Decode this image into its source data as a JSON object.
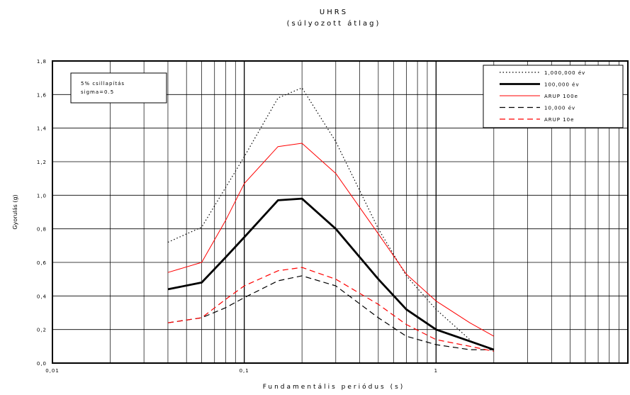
{
  "chart_data": {
    "type": "line",
    "title": "UHRS",
    "subtitle": "(súlyozott átlag)",
    "xlabel": "Fundamentális periódus (s)",
    "ylabel": "Gyorulás (g)",
    "xscale": "log",
    "xlim": [
      0.01,
      10
    ],
    "ylim": [
      0,
      1.8
    ],
    "x_tick_labels": [
      "0,01",
      "0,1",
      "1"
    ],
    "y_tick_labels": [
      "0,0",
      "0,2",
      "0,4",
      "0,6",
      "0,8",
      "1,0",
      "1,2",
      "1,4",
      "1,6",
      "1,8"
    ],
    "annotation": [
      "5% csillapítás",
      "sigma=0.5"
    ],
    "grid": true,
    "legend_position": "top-right",
    "series": [
      {
        "name": "1,000,000 év",
        "color": "#000000",
        "style": "dotted",
        "x": [
          0.04,
          0.06,
          0.1,
          0.15,
          0.2,
          0.3,
          0.5,
          0.7,
          1.0,
          1.5
        ],
        "y": [
          0.72,
          0.81,
          1.23,
          1.58,
          1.64,
          1.32,
          0.8,
          0.52,
          0.32,
          0.14
        ]
      },
      {
        "name": "100,000 év",
        "color": "#000000",
        "style": "thick",
        "x": [
          0.04,
          0.06,
          0.08,
          0.1,
          0.15,
          0.2,
          0.3,
          0.5,
          0.7,
          1.0,
          1.5,
          2.0
        ],
        "y": [
          0.44,
          0.48,
          0.63,
          0.75,
          0.97,
          0.98,
          0.8,
          0.5,
          0.32,
          0.2,
          0.13,
          0.08
        ]
      },
      {
        "name": "ARUP 100e",
        "color": "#ff0000",
        "style": "solid",
        "x": [
          0.04,
          0.06,
          0.08,
          0.1,
          0.15,
          0.2,
          0.3,
          0.5,
          0.7,
          1.0,
          1.5,
          2.0
        ],
        "y": [
          0.54,
          0.6,
          0.85,
          1.07,
          1.29,
          1.31,
          1.13,
          0.77,
          0.53,
          0.37,
          0.24,
          0.16
        ]
      },
      {
        "name": "10,000 év",
        "color": "#000000",
        "style": "dashed",
        "x": [
          0.04,
          0.06,
          0.08,
          0.1,
          0.15,
          0.2,
          0.3,
          0.5,
          0.7,
          1.0,
          1.5,
          2.0
        ],
        "y": [
          0.24,
          0.27,
          0.33,
          0.39,
          0.49,
          0.52,
          0.46,
          0.27,
          0.16,
          0.11,
          0.08,
          0.08
        ]
      },
      {
        "name": "ARUP 10e",
        "color": "#ff0000",
        "style": "dashed",
        "x": [
          0.04,
          0.06,
          0.08,
          0.1,
          0.15,
          0.2,
          0.3,
          0.5,
          0.7,
          1.0,
          1.5,
          2.0
        ],
        "y": [
          0.24,
          0.27,
          0.38,
          0.46,
          0.55,
          0.57,
          0.5,
          0.35,
          0.23,
          0.14,
          0.1,
          0.07
        ]
      }
    ]
  }
}
